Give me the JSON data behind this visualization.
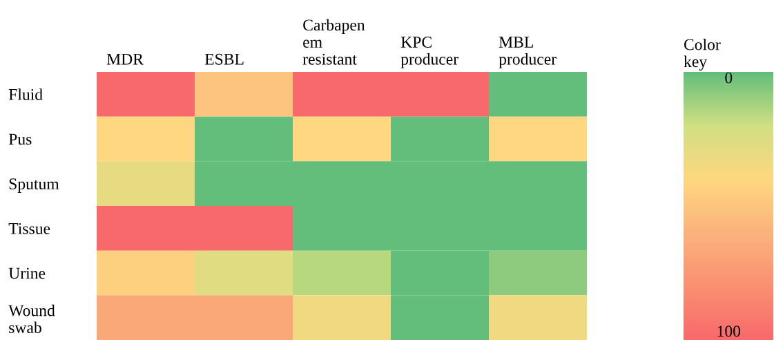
{
  "chart_data": {
    "type": "heatmap",
    "categories": [
      "MDR",
      "ESBL",
      "Carbapen\nem\nresistant",
      "KPC\nproducer",
      "MBL\nproducer"
    ],
    "y_categories": [
      "Fluid",
      "Pus",
      "Sputum",
      "Tissue",
      "Urine",
      "Wound\nswab"
    ],
    "cells": [
      [
        100,
        50,
        100,
        100,
        0
      ],
      [
        40,
        0,
        40,
        0,
        40
      ],
      [
        30,
        0,
        0,
        0,
        0
      ],
      [
        100,
        100,
        0,
        0,
        0
      ],
      [
        44,
        27,
        16,
        0,
        8
      ],
      [
        66,
        66,
        34,
        0,
        34
      ]
    ],
    "clabel": "Color\nkey",
    "clim": [
      0,
      100
    ],
    "cticks": [
      0,
      100
    ]
  }
}
